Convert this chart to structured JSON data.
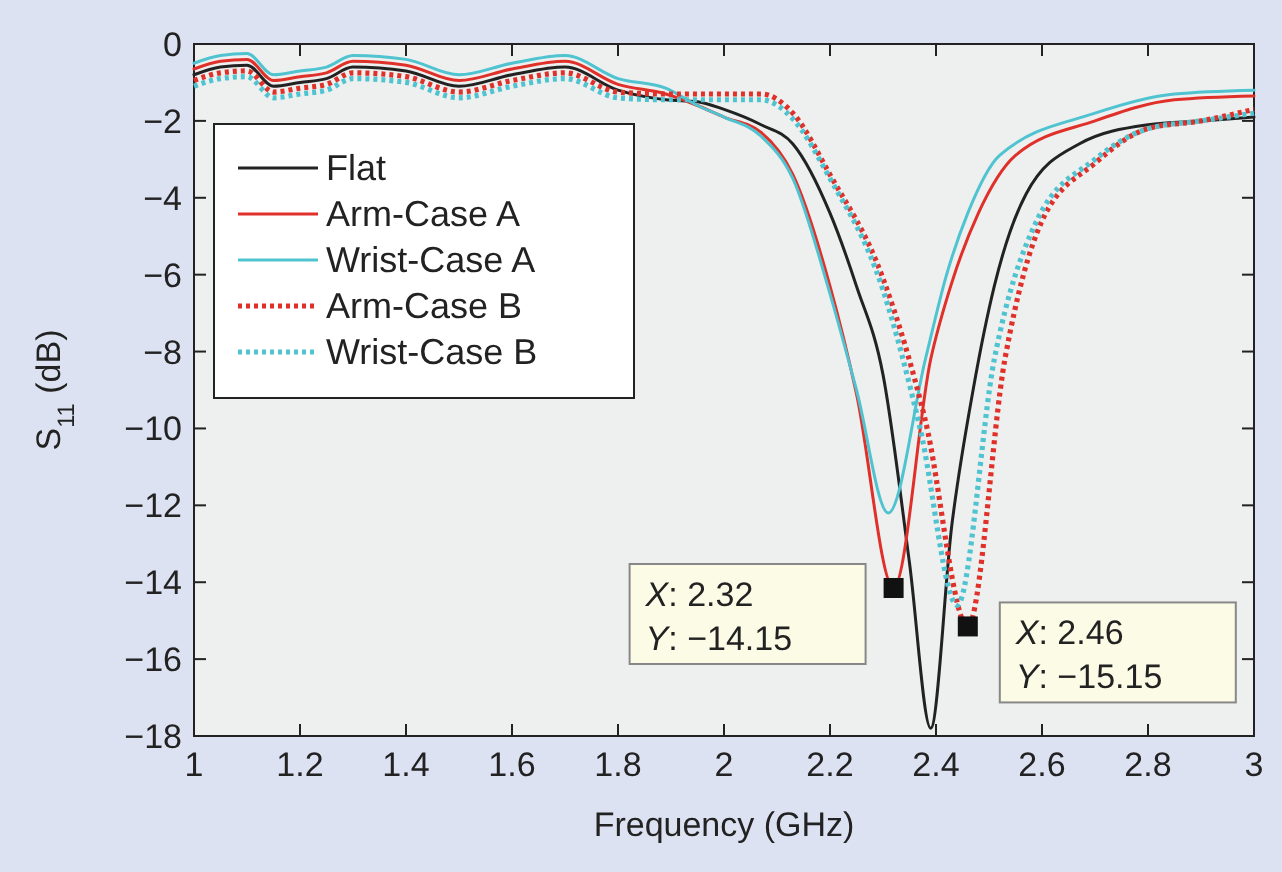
{
  "chart_data": {
    "type": "line",
    "xlabel": "Frequency (GHz)",
    "ylabel": "S$_{11}$ (dB)",
    "xlim": [
      1,
      3
    ],
    "ylim": [
      -18,
      0
    ],
    "xticks": [
      1,
      1.2,
      1.4,
      1.6,
      1.8,
      2,
      2.2,
      2.4,
      2.6,
      2.8,
      3
    ],
    "yticks": [
      -18,
      -16,
      -14,
      -12,
      -10,
      -8,
      -6,
      -4,
      -2,
      0
    ],
    "grid": false,
    "legend": "top left",
    "marker": "none",
    "series": [
      {
        "name": "Flat",
        "color": "#222222",
        "line_style": "solid",
        "x": [
          1,
          1.05,
          1.1,
          1.15,
          1.2,
          1.25,
          1.3,
          1.4,
          1.5,
          1.6,
          1.7,
          1.8,
          1.89,
          1.95,
          2.0,
          2.07,
          2.13,
          2.2,
          2.25,
          2.3,
          2.35,
          2.39,
          2.43,
          2.47,
          2.51,
          2.57,
          2.67,
          2.8,
          2.9,
          3.0
        ],
        "values": [
          -0.8,
          -0.6,
          -0.55,
          -1.1,
          -1.0,
          -0.9,
          -0.6,
          -0.7,
          -1.1,
          -0.8,
          -0.6,
          -1.2,
          -1.45,
          -1.5,
          -1.7,
          -2.1,
          -2.6,
          -4.4,
          -6.3,
          -8.6,
          -13.5,
          -17.8,
          -12.5,
          -9.0,
          -6.3,
          -3.9,
          -2.6,
          -2.1,
          -2.0,
          -1.9
        ]
      },
      {
        "name": "Arm-Case A",
        "color": "#e0302a",
        "line_style": "solid",
        "x": [
          1,
          1.05,
          1.1,
          1.15,
          1.2,
          1.25,
          1.3,
          1.4,
          1.5,
          1.6,
          1.7,
          1.8,
          1.89,
          1.95,
          2.0,
          2.07,
          2.13,
          2.2,
          2.25,
          2.32,
          2.39,
          2.43,
          2.48,
          2.55,
          2.7,
          2.85,
          3.0
        ],
        "values": [
          -0.65,
          -0.45,
          -0.4,
          -0.95,
          -0.85,
          -0.75,
          -0.45,
          -0.55,
          -0.95,
          -0.65,
          -0.45,
          -1.05,
          -1.3,
          -1.6,
          -1.9,
          -2.3,
          -3.4,
          -6.3,
          -9.1,
          -14.15,
          -8.2,
          -6.2,
          -4.4,
          -2.9,
          -2.0,
          -1.45,
          -1.35
        ]
      },
      {
        "name": "Wrist-Case A",
        "color": "#4fc3d0",
        "line_style": "solid",
        "x": [
          1,
          1.05,
          1.1,
          1.15,
          1.2,
          1.25,
          1.3,
          1.4,
          1.5,
          1.6,
          1.7,
          1.8,
          1.89,
          1.95,
          2.0,
          2.07,
          2.13,
          2.2,
          2.25,
          2.31,
          2.38,
          2.42,
          2.46,
          2.52,
          2.7,
          2.85,
          3.0
        ],
        "values": [
          -0.5,
          -0.3,
          -0.25,
          -0.8,
          -0.7,
          -0.6,
          -0.3,
          -0.4,
          -0.8,
          -0.5,
          -0.3,
          -0.9,
          -1.15,
          -1.6,
          -1.9,
          -2.4,
          -3.5,
          -6.5,
          -9.0,
          -12.2,
          -8.2,
          -6.0,
          -4.4,
          -2.9,
          -1.8,
          -1.3,
          -1.2
        ]
      },
      {
        "name": "Arm-Case B",
        "color": "#e0302a",
        "line_style": "dotted",
        "x": [
          1,
          1.05,
          1.1,
          1.15,
          1.2,
          1.25,
          1.3,
          1.4,
          1.5,
          1.6,
          1.7,
          1.8,
          1.89,
          1.95,
          2.0,
          2.07,
          2.13,
          2.2,
          2.3,
          2.38,
          2.46,
          2.53,
          2.6,
          2.7,
          2.8,
          2.9,
          3.0
        ],
        "values": [
          -0.95,
          -0.75,
          -0.7,
          -1.25,
          -1.15,
          -1.05,
          -0.75,
          -0.85,
          -1.25,
          -0.95,
          -0.75,
          -1.25,
          -1.3,
          -1.3,
          -1.3,
          -1.3,
          -1.8,
          -3.4,
          -6.1,
          -9.8,
          -15.15,
          -8.2,
          -4.6,
          -3.1,
          -2.2,
          -2.0,
          -1.7
        ]
      },
      {
        "name": "Wrist-Case B",
        "color": "#4fc3d0",
        "line_style": "dotted",
        "x": [
          1,
          1.05,
          1.1,
          1.15,
          1.2,
          1.25,
          1.3,
          1.4,
          1.5,
          1.6,
          1.7,
          1.8,
          1.89,
          1.95,
          2.0,
          2.07,
          2.13,
          2.2,
          2.3,
          2.37,
          2.44,
          2.51,
          2.59,
          2.7,
          2.8,
          2.9,
          3.0
        ],
        "values": [
          -1.1,
          -0.9,
          -0.85,
          -1.4,
          -1.3,
          -1.2,
          -0.9,
          -1.0,
          -1.4,
          -1.1,
          -0.9,
          -1.4,
          -1.45,
          -1.45,
          -1.45,
          -1.45,
          -1.95,
          -3.5,
          -6.4,
          -10.0,
          -14.6,
          -8.2,
          -4.6,
          -3.0,
          -2.2,
          -2.0,
          -1.8
        ]
      }
    ],
    "annotations": [
      {
        "text": "X: 2.32\nY: −14.15",
        "x": 2.32,
        "y": -14.15
      },
      {
        "text": "X: 2.46\nY: −15.15",
        "x": 2.46,
        "y": -15.15
      }
    ]
  }
}
